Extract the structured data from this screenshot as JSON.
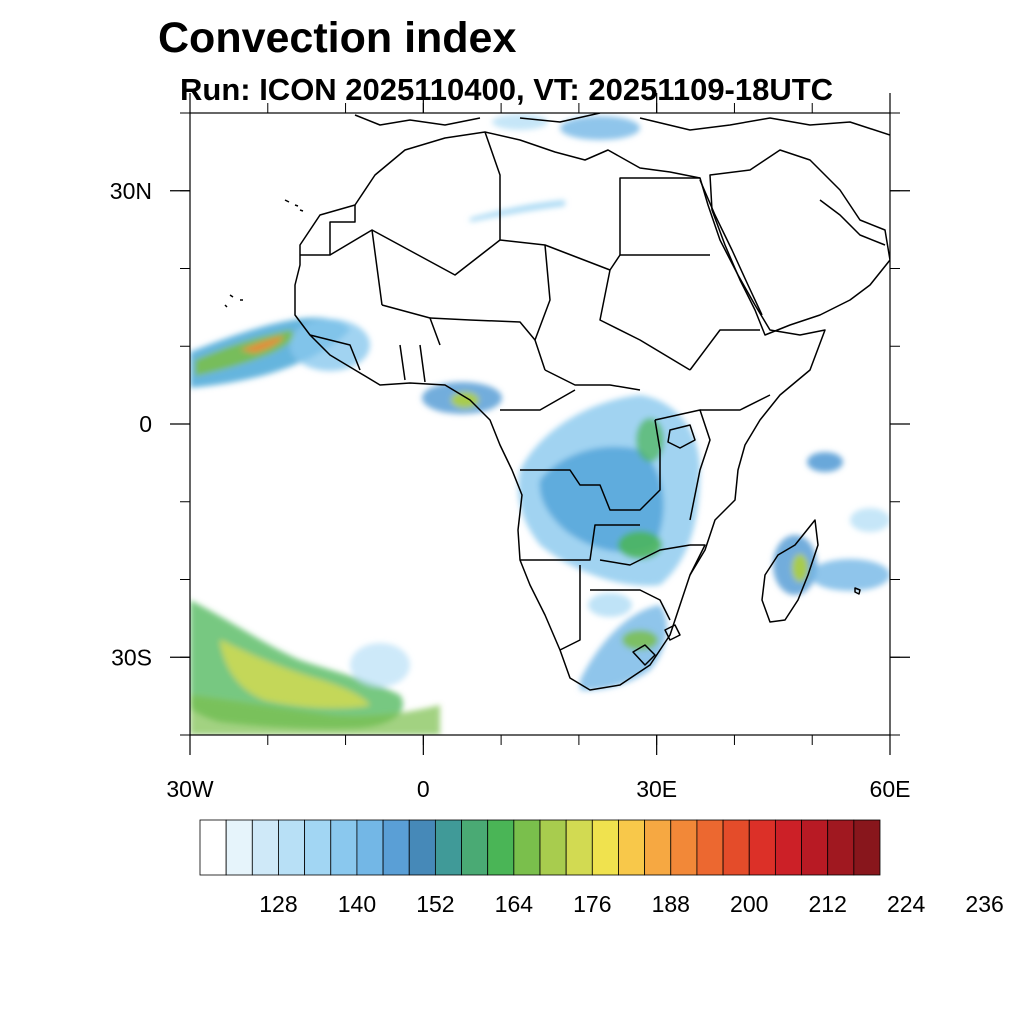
{
  "title": "Convection index",
  "subtitle": "Run: ICON 2025110400,  VT: 20251109-18UTC",
  "map": {
    "lon_range": [
      -30,
      60
    ],
    "lat_range": [
      -40,
      40
    ],
    "lat_ticks": [
      {
        "value": 30,
        "label": "30N"
      },
      {
        "value": 0,
        "label": "0"
      },
      {
        "value": -30,
        "label": "30S"
      }
    ],
    "lon_ticks": [
      {
        "value": -30,
        "label": "30W"
      },
      {
        "value": 0,
        "label": "0"
      },
      {
        "value": 30,
        "label": "30E"
      },
      {
        "value": 60,
        "label": "60E"
      }
    ],
    "minor_lat_ticks": [
      -40,
      -30,
      -20,
      -10,
      0,
      10,
      20,
      30,
      40
    ],
    "minor_lon_ticks": [
      -30,
      -20,
      -10,
      0,
      10,
      20,
      30,
      40,
      50,
      60
    ]
  },
  "colorbar": {
    "labels": [
      "128",
      "140",
      "152",
      "164",
      "176",
      "188",
      "200",
      "212",
      "224",
      "236"
    ],
    "colors": [
      "#ffffff",
      "#e6f4fb",
      "#cfe9f8",
      "#b8e0f6",
      "#a2d6f3",
      "#8ac8ee",
      "#73b7e6",
      "#5a9fd6",
      "#4689b8",
      "#409a98",
      "#4aaa74",
      "#4ab556",
      "#7abf4c",
      "#a8cc4e",
      "#d2da52",
      "#f0e24e",
      "#f8c84a",
      "#f6a842",
      "#f28838",
      "#ec6830",
      "#e44c2a",
      "#dc3028",
      "#cc2027",
      "#b81a24",
      "#a01820",
      "#88161c"
    ]
  }
}
